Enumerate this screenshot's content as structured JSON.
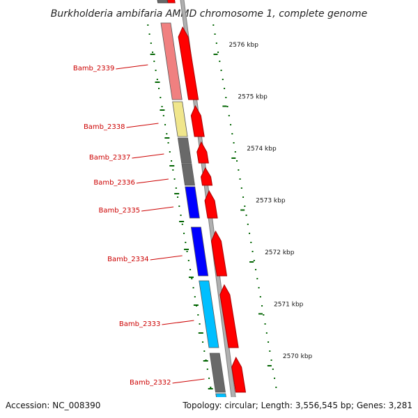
{
  "title": "Burkholderia ambifaria AMMD chromosome 1, complete genome",
  "footer": {
    "accession": "Accession: NC_008390",
    "topology": "Topology: circular; Length: 3,556,545 bp; Genes: 3,281"
  },
  "genes": [
    {
      "label": "Bamb_2339",
      "color": "#f08080"
    },
    {
      "label": "Bamb_2338",
      "color": "#f0e68c"
    },
    {
      "label": "Bamb_2337",
      "color": "#696969"
    },
    {
      "label": "Bamb_2336",
      "color": "#696969"
    },
    {
      "label": "Bamb_2335",
      "color": "#0000ff"
    },
    {
      "label": "Bamb_2334",
      "color": "#0000ff"
    },
    {
      "label": "Bamb_2333",
      "color": "#00bfff"
    },
    {
      "label": "Bamb_2332",
      "color": "#696969"
    }
  ],
  "ruler": [
    "2576 kbp",
    "2575 kbp",
    "2574 kbp",
    "2573 kbp",
    "2572 kbp",
    "2571 kbp",
    "2570 kbp"
  ],
  "colors": {
    "label_red": "#cc0000",
    "feature_red": "#ff0000",
    "tick_green": "#006400",
    "backbone_gray": "#808080"
  }
}
